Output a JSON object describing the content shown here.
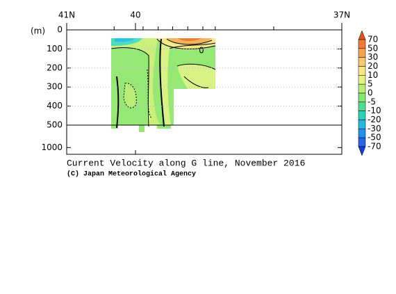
{
  "chart_data": {
    "type": "contour",
    "title": "Current Velocity along G line, November 2016",
    "credit": "(C) Japan Meteorological Agency",
    "y_label": "(m)",
    "xlim": [
      41,
      37
    ],
    "xticks": [
      {
        "value": 41,
        "label": "41N"
      },
      40,
      {
        "value": 37,
        "label": "37N"
      }
    ],
    "minor_xticks": [
      40.31,
      39.89,
      39.67,
      39.46,
      39.24,
      39.02,
      38.84,
      37.99
    ],
    "ylim": [
      0,
      1150
    ],
    "yticks": [
      0,
      100,
      200,
      300,
      400,
      500,
      1000
    ],
    "axis_break": 500,
    "grid": true,
    "contour_labels": [
      "0"
    ],
    "colorbar": {
      "levels": [
        70,
        50,
        30,
        20,
        10,
        5,
        0,
        -5,
        -10,
        -20,
        -30,
        -50,
        -70
      ],
      "colors": [
        "#e8501e",
        "#f27a34",
        "#f6a24e",
        "#f8c86c",
        "#f5e688",
        "#e6f282",
        "#b8ee76",
        "#86e672",
        "#4edc92",
        "#2ccfb8",
        "#22b8e0",
        "#2090ea",
        "#2466e6",
        "#1a3cd6"
      ]
    }
  }
}
